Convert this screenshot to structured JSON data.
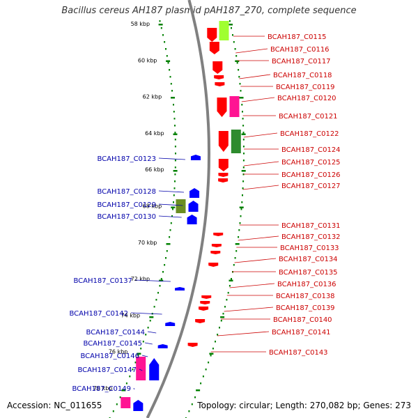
{
  "title": "Bacillus cereus AH187 plasmid pAH187_270, complete sequence",
  "accession": "Accession: NC_011655",
  "summary": "Topology: circular; Length: 270,082 bp; Genes: 273",
  "colors": {
    "forward_gene": "#ff0000",
    "reverse_gene": "#0000ff",
    "backbone": "#808080",
    "tick_marks": "#008000",
    "forward_label": "#cc0000",
    "reverse_label": "#0000aa",
    "feature_pink": "#ff1493",
    "feature_lime": "#a0ff30",
    "feature_green": "#2e8b2e",
    "feature_olive": "#6b8e23"
  },
  "kbp_ticks": [
    "58 kbp",
    "60 kbp",
    "62 kbp",
    "64 kbp",
    "66 kbp",
    "68 kbp",
    "70 kbp",
    "72 kbp",
    "74 kbp",
    "76 kbp",
    "78 kbp"
  ],
  "forward_genes": [
    "BCAH187_C0115",
    "BCAH187_C0116",
    "BCAH187_C0117",
    "BCAH187_C0118",
    "BCAH187_C0119",
    "BCAH187_C0120",
    "BCAH187_C0121",
    "BCAH187_C0122",
    "BCAH187_C0124",
    "BCAH187_C0125",
    "BCAH187_C0126",
    "BCAH187_C0127",
    "BCAH187_C0131",
    "BCAH187_C0132",
    "BCAH187_C0133",
    "BCAH187_C0134",
    "BCAH187_C0135",
    "BCAH187_C0136",
    "BCAH187_C0138",
    "BCAH187_C0139",
    "BCAH187_C0140",
    "BCAH187_C0141",
    "BCAH187_C0143"
  ],
  "reverse_genes": [
    "BCAH187_C0123",
    "BCAH187_C0128",
    "BCAH187_C0129",
    "BCAH187_C0130",
    "BCAH187_C0137",
    "BCAH187_C0142",
    "BCAH187_C0144",
    "BCAH187_C0145",
    "BCAH187_C0146",
    "BCAH187_C0147",
    "BCAH187_C0149"
  ]
}
